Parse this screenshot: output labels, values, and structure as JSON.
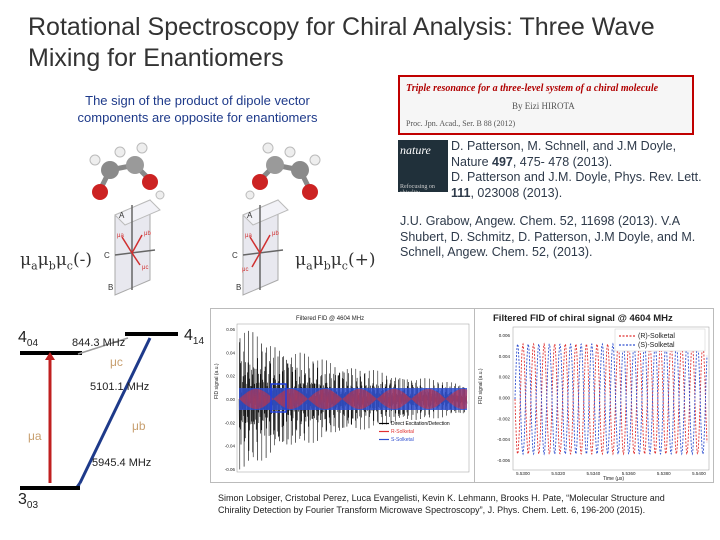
{
  "title": "Rotational Spectroscopy for Chiral Analysis:  Three Wave Mixing for Enantiomers",
  "note": "The sign of the product of dipole vector components are opposite for enantiomers",
  "enantiomer_left": {
    "mu": "μ",
    "a": "a",
    "b": "b",
    "c": "c",
    "sign": "(-)"
  },
  "enantiomer_right": {
    "mu": "μ",
    "a": "a",
    "b": "b",
    "c": "c",
    "sign": "(+)"
  },
  "axis_labels": {
    "A": "A",
    "B": "B",
    "C": "C",
    "mua": "μa",
    "mub": "μb",
    "muc": "μc"
  },
  "ref_box": {
    "head": "Triple resonance for a three-level system of a chiral molecule",
    "authors": "By Eizi HIROTA",
    "journal": "Proc. Jpn. Acad., Ser. B 88 (2012)"
  },
  "journal_cover": {
    "name": "nature",
    "sub": "Refocusing on chirality"
  },
  "citation_1": {
    "prefix": "D. Patterson, M. Schnell, and J.M Doyle, Nature ",
    "volume": "497",
    "suffix": ", 475- 478 (2013).",
    "line2_prefix": "D. Patterson and J.M. Doyle, Phys. Rev. Lett. ",
    "line2_volume": "111",
    "line2_suffix": ", 023008 (2013)."
  },
  "citation_2": "J.U. Grabow, Angew. Chem. 52, 11698 (2013). V.A Shubert, D. Schmitz,  D. Patterson, J.M Doyle, and M. Schnell, Angew. Chem. 52, (2013).",
  "citation_3": "Simon Lobsiger, Cristobal Perez, Luca Evangelisti, Kevin K. Lehmann, Brooks H. Pate, “Molecular Structure and Chirality Detection by Fourier Transform Microwave Spectroscopy”, J. Phys. Chem. Lett. 6, 196-200 (2015).",
  "energy_levels": {
    "top": "4",
    "top_sub": "14",
    "mid": "4",
    "mid_sub": "04",
    "bottom": "3",
    "bottom_sub": "03",
    "freq_1": "844.3 MHz",
    "freq_2": "5101.1 MHz",
    "freq_3": "5945.4 MHz",
    "mu_a": "μa",
    "mu_b": "μb",
    "mu_c": "μc"
  },
  "fid_plot": {
    "title": "Filtered FID @ 4604 MHz",
    "ylabel": "FID signal (a.u.)",
    "yticks": [
      "0.06",
      "0.04",
      "0.02",
      "0.00",
      "-0.02",
      "-0.04",
      "-0.06"
    ],
    "legend": [
      "Direct Excitation/Detection",
      "R-Solketal",
      "S-Solketal"
    ],
    "colors": {
      "direct": "#000000",
      "r": "#e03030",
      "s": "#3050d0"
    }
  },
  "zoom_plot": {
    "title": "Filtered FID of chiral signal @ 4604 MHz",
    "ylabel": "FID signal (a.u.)",
    "xlabel": "Time (μs)",
    "legend": [
      "(R)-Solketal",
      "(S)-Solketal"
    ],
    "yticks": [
      "0.006",
      "0.004",
      "0.002",
      "0.000",
      "-0.002",
      "-0.004",
      "-0.006"
    ],
    "xticks": [
      "5.5300",
      "5.5320",
      "5.5340",
      "5.5360",
      "5.5380",
      "5.5400"
    ]
  }
}
